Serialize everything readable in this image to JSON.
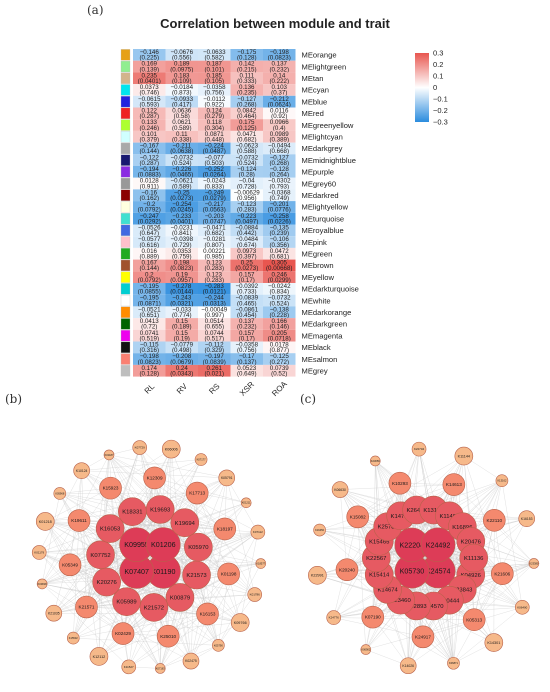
{
  "panels": {
    "a": "(a)",
    "b": "(b)",
    "c": "(c)"
  },
  "chart_data": [
    {
      "type": "heatmap",
      "title": "Correlation between module and trait",
      "columns": [
        "RL",
        "RV",
        "RS",
        "XSR",
        "ROA"
      ],
      "color_scale": {
        "min": -0.3,
        "max": 0.3,
        "low": "#2b8cde",
        "mid": "#ffffff",
        "high": "#e8564f",
        "ticks": [
          "0.3",
          "0.2",
          "0.1",
          "0",
          "−0.1",
          "−0.2",
          "−0.3"
        ]
      },
      "rows": [
        {
          "name": "MEorange",
          "color": "#e6a117",
          "r": [
            "−0.146",
            "−0.0676",
            "−0.0633",
            "−0.175",
            "−0.198"
          ],
          "p": [
            "(0.225)",
            "(0.556)",
            "(0.582)",
            "(0.128)",
            "(0.0823)"
          ]
        },
        {
          "name": "MElightgreen",
          "color": "#90ee90",
          "r": [
            "0.169",
            "0.189",
            "0.187",
            "0.142",
            "0.137"
          ],
          "p": [
            "(0.139)",
            "(0.0975)",
            "(0.101)",
            "(0.215)",
            "(0.232)"
          ]
        },
        {
          "name": "MEtan",
          "color": "#d2b48c",
          "r": [
            "0.235",
            "0.183",
            "0.185",
            "0.111",
            "0.14"
          ],
          "p": [
            "(0.0401)",
            "(0.109)",
            "(0.105)",
            "(0.333)",
            "(0.222)"
          ]
        },
        {
          "name": "MEcyan",
          "color": "#00e5ee",
          "r": [
            "0.0373",
            "−0.0184",
            "−0.0358",
            "0.136",
            "0.103"
          ],
          "p": [
            "(0.746)",
            "(0.873)",
            "(0.756)",
            "(0.235)",
            "(0.37)"
          ]
        },
        {
          "name": "MEblue",
          "color": "#2222dd",
          "r": [
            "−0.0615",
            "−0.0933",
            "−0.0112",
            "−0.127",
            "−0.212"
          ],
          "p": [
            "(0.593)",
            "(0.417)",
            "(0.922)",
            "(0.268)",
            "(0.0624)"
          ]
        },
        {
          "name": "MEred",
          "color": "#ee2222",
          "r": [
            "0.122",
            "0.0636",
            "0.124",
            "0.0842",
            "0.0116"
          ],
          "p": [
            "(0.287)",
            "(0.58)",
            "(0.279)",
            "(0.464)",
            "(0.92)"
          ]
        },
        {
          "name": "MEgreenyellow",
          "color": "#adff2f",
          "r": [
            "0.133",
            "0.0621",
            "0.118",
            "0.175",
            "0.0966"
          ],
          "p": [
            "(0.246)",
            "(0.589)",
            "(0.304)",
            "(0.125)",
            "(0.4)"
          ]
        },
        {
          "name": "MElightcyan",
          "color": "#d0ffff",
          "r": [
            "0.101",
            "0.11",
            "0.0871",
            "0.0471",
            "0.0989"
          ],
          "p": [
            "(0.379)",
            "(0.338)",
            "(0.448)",
            "(0.682)",
            "(0.389)"
          ]
        },
        {
          "name": "MEdarkgrey",
          "color": "#a9a9a9",
          "r": [
            "−0.167",
            "−0.211",
            "−0.224",
            "−0.0623",
            "−0.0494"
          ],
          "p": [
            "(0.144)",
            "(0.0638)",
            "(0.0487)",
            "(0.588)",
            "(0.668)"
          ]
        },
        {
          "name": "MEmidnightblue",
          "color": "#191970",
          "r": [
            "−0.122",
            "−0.0732",
            "−0.077",
            "−0.0732",
            "−0.127"
          ],
          "p": [
            "(0.287)",
            "(0.524)",
            "(0.503)",
            "(0.524)",
            "(0.268)"
          ]
        },
        {
          "name": "MEpurple",
          "color": "#8a2be2",
          "r": [
            "−0.194",
            "−0.226",
            "−0.252",
            "−0.124",
            "−0.128"
          ],
          "p": [
            "(0.0883)",
            "(0.0465)",
            "(0.0264)",
            "(0.28)",
            "(0.264)"
          ]
        },
        {
          "name": "MEgrey60",
          "color": "#999999",
          "r": [
            "0.0128",
            "−0.0621",
            "−0.0243",
            "−0.04",
            "−0.0302"
          ],
          "p": [
            "(0.911)",
            "(0.589)",
            "(0.833)",
            "(0.728)",
            "(0.793)"
          ]
        },
        {
          "name": "MEdarkred",
          "color": "#8b0000",
          "r": [
            "−0.16",
            "−0.25",
            "−0.249",
            "−0.00629",
            "−0.0368"
          ],
          "p": [
            "(0.162)",
            "(0.0273)",
            "(0.0279)",
            "(0.956)",
            "(0.749)"
          ]
        },
        {
          "name": "MElightyellow",
          "color": "#ffffe0",
          "r": [
            "−0.2",
            "−0.254",
            "−0.217",
            "−0.123",
            "−0.201"
          ],
          "p": [
            "(0.0792)",
            "(0.0245)",
            "(0.0563)",
            "(0.283)",
            "(0.0776)"
          ]
        },
        {
          "name": "MEturquoise",
          "color": "#40e0d0",
          "r": [
            "−0.247",
            "−0.233",
            "−0.203",
            "−0.223",
            "−0.258"
          ],
          "p": [
            "(0.0292)",
            "(0.0401)",
            "(0.0747)",
            "(0.0497)",
            "(0.0226)"
          ]
        },
        {
          "name": "MEroyalblue",
          "color": "#4169e1",
          "r": [
            "−0.0526",
            "−0.0231",
            "−0.0471",
            "−0.0884",
            "−0.135"
          ],
          "p": [
            "(0.647)",
            "(0.841)",
            "(0.682)",
            "(0.442)",
            "(0.239)"
          ]
        },
        {
          "name": "MEpink",
          "color": "#ffc0cb",
          "r": [
            "−0.0577",
            "−0.0398",
            "−0.0281",
            "−0.0484",
            "−0.106"
          ],
          "p": [
            "(0.616)",
            "(0.729)",
            "(0.807)",
            "(0.674)",
            "(0.356)"
          ]
        },
        {
          "name": "MEgreen",
          "color": "#22aa22",
          "r": [
            "0.016",
            "0.0353",
            "0.00221",
            "0.0973",
            "0.0472"
          ],
          "p": [
            "(0.889)",
            "(0.759)",
            "(0.985)",
            "(0.397)",
            "(0.681)"
          ]
        },
        {
          "name": "MEbrown",
          "color": "#a0522d",
          "r": [
            "0.167",
            "0.198",
            "0.123",
            "0.25",
            "0.305"
          ],
          "p": [
            "(0.144)",
            "(0.0823)",
            "(0.283)",
            "(0.0273)",
            "(0.00668)"
          ]
        },
        {
          "name": "MEyellow",
          "color": "#ffff00",
          "r": [
            "0.2",
            "0.19",
            "0.123",
            "0.157",
            "0.246"
          ],
          "p": [
            "(0.0792)",
            "(0.0957)",
            "(0.283)",
            "(0.17)",
            "(0.0299)"
          ]
        },
        {
          "name": "MEdarkturquoise",
          "color": "#00ced1",
          "r": [
            "−0.195",
            "−0.278",
            "−0.283",
            "−0.0392",
            "−0.0242"
          ],
          "p": [
            "(0.0855)",
            "(0.0144)",
            "(0.0121)",
            "(0.733)",
            "(0.834)"
          ]
        },
        {
          "name": "MEwhite",
          "color": "#ffffff",
          "r": [
            "−0.195",
            "−0.243",
            "−0.244",
            "−0.0839",
            "−0.0732"
          ],
          "p": [
            "(0.0871)",
            "(0.0321)",
            "(0.0313)",
            "(0.465)",
            "(0.524)"
          ]
        },
        {
          "name": "MEdarkorange",
          "color": "#ff8c00",
          "r": [
            "−0.0521",
            "−0.033",
            "−0.00049",
            "−0.0861",
            "−0.138"
          ],
          "p": [
            "(0.651)",
            "(0.774)",
            "(0.997)",
            "(0.454)",
            "(0.228)"
          ]
        },
        {
          "name": "MEdarkgreen",
          "color": "#006400",
          "r": [
            "0.0413",
            "0.15",
            "0.0514",
            "0.137",
            "0.166"
          ],
          "p": [
            "(0.72)",
            "(0.189)",
            "(0.655)",
            "(0.232)",
            "(0.146)"
          ]
        },
        {
          "name": "MEmagenta",
          "color": "#ee00ee",
          "r": [
            "0.0741",
            "0.15",
            "0.0744",
            "0.157",
            "0.205"
          ],
          "p": [
            "(0.519)",
            "(0.19)",
            "(0.517)",
            "(0.17)",
            "(0.0718)"
          ]
        },
        {
          "name": "MEblack",
          "color": "#111111",
          "r": [
            "−0.115",
            "−0.0779",
            "−0.112",
            "−0.0358",
            "0.0178"
          ],
          "p": [
            "(0.316)",
            "(0.498)",
            "(0.329)",
            "(0.756)",
            "(0.877)"
          ]
        },
        {
          "name": "MEsalmon",
          "color": "#fa8072",
          "r": [
            "−0.198",
            "−0.208",
            "−0.197",
            "−0.17",
            "−0.125"
          ],
          "p": [
            "(0.0823)",
            "(0.0679)",
            "(0.0839)",
            "(0.137)",
            "(0.272)"
          ]
        },
        {
          "name": "MEgrey",
          "color": "#bebebe",
          "r": [
            "0.174",
            "0.24",
            "0.261",
            "0.0523",
            "0.0739"
          ],
          "p": [
            "(0.128)",
            "(0.0343)",
            "(0.021)",
            "(0.649)",
            "(0.52)"
          ]
        }
      ]
    },
    {
      "type": "network",
      "panel": "(b)",
      "core": [
        "K01190",
        "K07407",
        "K09955",
        "K01206",
        "K21573",
        "K00879",
        "K21572",
        "K05989",
        "K20276",
        "K07752",
        "K16053",
        "K18331",
        "K19693",
        "K19694",
        "K05970"
      ],
      "mid": [
        "K01198",
        "K16153",
        "K25010",
        "K02429",
        "K21571",
        "K05349",
        "K19611",
        "K15923",
        "K12309",
        "K17713",
        "K18197"
      ],
      "outer": [
        "K18577",
        "K01786",
        "K09766",
        "K05790",
        "K02475",
        "K07163",
        "K11527",
        "K12112",
        "K15532",
        "K21035",
        "K03818",
        "K01179",
        "K01218",
        "K05968",
        "K10124",
        "K01187",
        "K07729",
        "K06006",
        "K07177",
        "K05791",
        "K01211",
        "K07112"
      ]
    },
    {
      "type": "network",
      "panel": "(c)",
      "core": [
        "K24574",
        "K05730",
        "K22204",
        "K24492",
        "K04926",
        "K23843",
        "K00444",
        "K14570",
        "K02893",
        "K23460",
        "K14674",
        "K15414",
        "K22567",
        "K15465",
        "K25782",
        "K14780",
        "K26401",
        "K13139",
        "K11491",
        "K16896",
        "K20476",
        "K11136"
      ],
      "mid": [
        "K21606",
        "K05313",
        "K24917",
        "K07190",
        "K20240",
        "K15082",
        "K10293",
        "K14613",
        "K22110"
      ],
      "outer": [
        "K23380",
        "K06490",
        "K14301",
        "K06871",
        "K14026",
        "K06902",
        "K24776",
        "K22991",
        "K16450",
        "K06630",
        "K23059",
        "K22794",
        "K11144",
        "K13162",
        "K16153"
      ]
    }
  ]
}
